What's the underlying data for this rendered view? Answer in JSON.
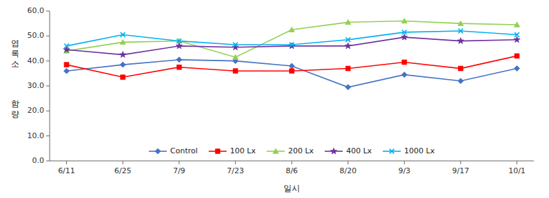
{
  "chart_data": {
    "type": "line",
    "xlabel": "일시",
    "ylabel": [
      "엽\n록\n소",
      "함\n량"
    ],
    "categories": [
      "6/11",
      "6/25",
      "7/9",
      "7/23",
      "8/6",
      "8/20",
      "9/3",
      "9/17",
      "10/1"
    ],
    "series": [
      {
        "name": "Control",
        "color": "#4472C4",
        "marker": "diamond",
        "values": [
          36.0,
          38.5,
          40.5,
          40.0,
          38.0,
          29.5,
          34.5,
          32.0,
          37.0
        ]
      },
      {
        "name": "100 Lx",
        "color": "#FF0000",
        "marker": "square",
        "values": [
          38.5,
          33.5,
          37.5,
          36.0,
          36.0,
          37.0,
          39.5,
          37.0,
          42.0
        ]
      },
      {
        "name": "200 Lx",
        "color": "#92D050",
        "marker": "triangle",
        "values": [
          44.0,
          47.5,
          48.0,
          41.5,
          52.5,
          55.5,
          56.0,
          55.0,
          54.5
        ]
      },
      {
        "name": "400 Lx",
        "color": "#7030A0",
        "marker": "star",
        "values": [
          44.5,
          42.5,
          46.0,
          45.5,
          46.0,
          46.0,
          49.5,
          48.0,
          48.5
        ]
      },
      {
        "name": "1000 Lx",
        "color": "#00B0F0",
        "marker": "x",
        "values": [
          46.0,
          50.5,
          48.0,
          46.5,
          46.5,
          48.5,
          51.5,
          52.0,
          50.5
        ]
      }
    ],
    "ylim": [
      0.0,
      60.0
    ],
    "yticks": [
      {
        "value": 0.0,
        "label": "0.0"
      },
      {
        "value": 10.0,
        "label": "10.0"
      },
      {
        "value": 20.0,
        "label": "20.0"
      },
      {
        "value": 30.0,
        "label": "30.0"
      },
      {
        "value": 40.0,
        "label": "40.0"
      },
      {
        "value": 50.0,
        "label": "50.0"
      },
      {
        "value": 60.0,
        "label": "60.0"
      }
    ],
    "grid": false,
    "legend": "lower center"
  }
}
